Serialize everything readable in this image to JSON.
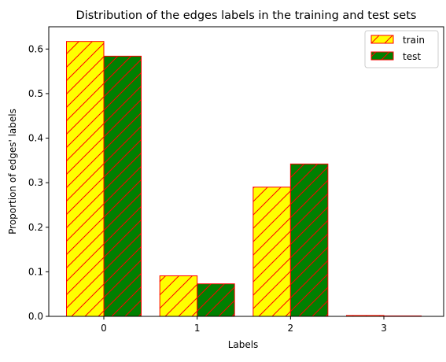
{
  "chart_data": {
    "type": "bar",
    "title": "Distribution of the edges labels in the training and test sets",
    "xlabel": "Labels",
    "ylabel": "Proportion of edges' labels",
    "categories": [
      "0",
      "1",
      "2",
      "3"
    ],
    "ylim": [
      0,
      0.65
    ],
    "yticks": [
      "0.0",
      "0.1",
      "0.2",
      "0.3",
      "0.4",
      "0.5",
      "0.6"
    ],
    "grid": false,
    "legend_position": "top-right",
    "series": [
      {
        "name": "train",
        "values": [
          0.617,
          0.091,
          0.29,
          0.002
        ],
        "color": "#ffff00",
        "edge_color": "#ff0000",
        "hatch": "diagonal"
      },
      {
        "name": "test",
        "values": [
          0.584,
          0.073,
          0.342,
          0.001
        ],
        "color": "#008000",
        "edge_color": "#ff0000",
        "hatch": "diagonal"
      }
    ]
  }
}
